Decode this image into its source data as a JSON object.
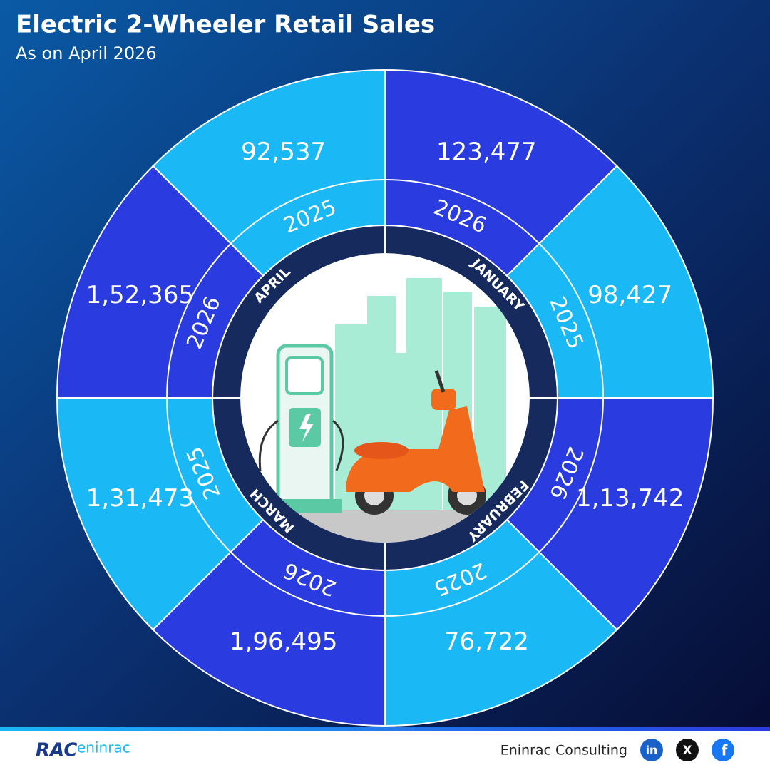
{
  "header": {
    "title": "Electric 2-Wheeler Retail Sales",
    "subtitle": "As on April 2026"
  },
  "wheel": {
    "months": [
      {
        "name": "APRIL",
        "entries": [
          {
            "year": "2025",
            "sales": "92,537"
          },
          {
            "year": "2026",
            "sales": "1,52,365"
          }
        ]
      },
      {
        "name": "JANUARY",
        "entries": [
          {
            "year": "2026",
            "sales": "123,477"
          },
          {
            "year": "2025",
            "sales": "98,427"
          }
        ]
      },
      {
        "name": "FEBRUARY",
        "entries": [
          {
            "year": "2026",
            "sales": "1,13,742"
          },
          {
            "year": "2025",
            "sales": "76,722"
          }
        ]
      },
      {
        "name": "MARCH",
        "entries": [
          {
            "year": "2025",
            "sales": "1,31,473"
          },
          {
            "year": "2026",
            "sales": "1,96,495"
          }
        ]
      }
    ]
  },
  "footer": {
    "logo_main": "RAC",
    "logo_sub": "eninrac",
    "company": "Eninrac Consulting",
    "social": [
      "in",
      "X",
      "f"
    ]
  }
}
